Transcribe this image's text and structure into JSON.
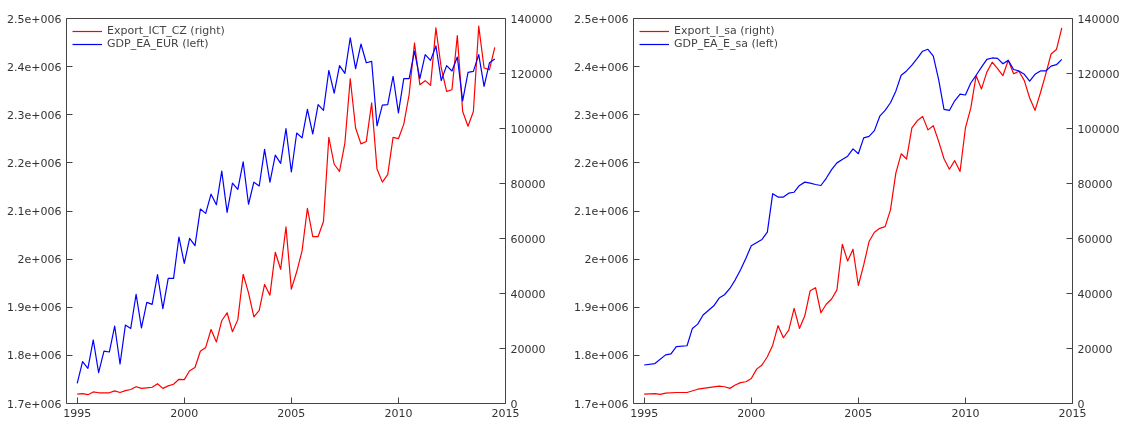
{
  "chart_data": [
    {
      "type": "line",
      "xlim": [
        1994.5,
        2015
      ],
      "xticks": [
        1995,
        2000,
        2005,
        2010,
        2015
      ],
      "ylim": [
        1700000,
        2500000
      ],
      "yticks": [
        {
          "value": 1700000,
          "label": "1.7e+006"
        },
        {
          "value": 1800000,
          "label": "1.8e+006"
        },
        {
          "value": 1900000,
          "label": "1.9e+006"
        },
        {
          "value": 2000000,
          "label": "2e+006"
        },
        {
          "value": 2100000,
          "label": "2.1e+006"
        },
        {
          "value": 2200000,
          "label": "2.2e+006"
        },
        {
          "value": 2300000,
          "label": "2.3e+006"
        },
        {
          "value": 2400000,
          "label": "2.4e+006"
        },
        {
          "value": 2500000,
          "label": "2.5e+006"
        }
      ],
      "y2lim": [
        0,
        140000
      ],
      "y2ticks": [
        0,
        20000,
        40000,
        60000,
        80000,
        100000,
        120000,
        140000
      ],
      "grid": false,
      "legend": "top left",
      "x": [
        1995,
        1995.25,
        1995.5,
        1995.75,
        1996,
        1996.25,
        1996.5,
        1996.75,
        1997,
        1997.25,
        1997.5,
        1997.75,
        1998,
        1998.25,
        1998.5,
        1998.75,
        1999,
        1999.25,
        1999.5,
        1999.75,
        2000,
        2000.25,
        2000.5,
        2000.75,
        2001,
        2001.25,
        2001.5,
        2001.75,
        2002,
        2002.25,
        2002.5,
        2002.75,
        2003,
        2003.25,
        2003.5,
        2003.75,
        2004,
        2004.25,
        2004.5,
        2004.75,
        2005,
        2005.25,
        2005.5,
        2005.75,
        2006,
        2006.25,
        2006.5,
        2006.75,
        2007,
        2007.25,
        2007.5,
        2007.75,
        2008,
        2008.25,
        2008.5,
        2008.75,
        2009,
        2009.25,
        2009.5,
        2009.75,
        2010,
        2010.25,
        2010.5,
        2010.75,
        2011,
        2011.25,
        2011.5,
        2011.75,
        2012,
        2012.25,
        2012.5,
        2012.75,
        2013,
        2013.25,
        2013.5,
        2013.75,
        2014,
        2014.25,
        2014.5
      ],
      "series": [
        {
          "name": "Export_ICT_CZ (right)",
          "color": "#ff0000",
          "axis": "y2",
          "values": [
            3400,
            3600,
            3200,
            4200,
            3900,
            3900,
            3900,
            4600,
            4000,
            4700,
            5100,
            6100,
            5500,
            5700,
            5900,
            7200,
            5500,
            6400,
            7000,
            8800,
            8700,
            11900,
            13100,
            19000,
            20400,
            26900,
            22400,
            30100,
            33000,
            26100,
            30500,
            47000,
            40200,
            31500,
            33900,
            43300,
            39400,
            55000,
            48800,
            64200,
            41600,
            47900,
            55500,
            71000,
            60700,
            60700,
            66200,
            96800,
            87000,
            84400,
            94700,
            118100,
            100200,
            94400,
            95300,
            109300,
            85300,
            80500,
            83200,
            96800,
            96300,
            101600,
            112300,
            131100,
            115900,
            117400,
            115700,
            136600,
            122000,
            113500,
            114100,
            133800,
            106200,
            100800,
            106200,
            137200,
            122000,
            121400,
            129500
          ]
        },
        {
          "name": "GDP_EA_EUR (left)",
          "color": "#0000ff",
          "values": [
            1742000,
            1787000,
            1773000,
            1832000,
            1764000,
            1809000,
            1807000,
            1861000,
            1782000,
            1863000,
            1856000,
            1927000,
            1857000,
            1910000,
            1906000,
            1968000,
            1897000,
            1960000,
            1960000,
            2046000,
            1991000,
            2043000,
            2028000,
            2104000,
            2095000,
            2135000,
            2113000,
            2183000,
            2097000,
            2158000,
            2145000,
            2202000,
            2114000,
            2160000,
            2152000,
            2228000,
            2160000,
            2216000,
            2199000,
            2271000,
            2181000,
            2262000,
            2252000,
            2311000,
            2260000,
            2321000,
            2309000,
            2392000,
            2345000,
            2402000,
            2386000,
            2460000,
            2396000,
            2447000,
            2408000,
            2411000,
            2277000,
            2320000,
            2321000,
            2380000,
            2304000,
            2375000,
            2375000,
            2432000,
            2375000,
            2425000,
            2413000,
            2443000,
            2371000,
            2402000,
            2391000,
            2420000,
            2329000,
            2388000,
            2390000,
            2425000,
            2359000,
            2408000,
            2416000
          ]
        }
      ]
    },
    {
      "type": "line",
      "xlim": [
        1994.5,
        2015
      ],
      "xticks": [
        1995,
        2000,
        2005,
        2010,
        2015
      ],
      "ylim": [
        1700000,
        2500000
      ],
      "yticks": [
        {
          "value": 1700000,
          "label": "1.7e+006"
        },
        {
          "value": 1800000,
          "label": "1.8e+006"
        },
        {
          "value": 1900000,
          "label": "1.9e+006"
        },
        {
          "value": 2000000,
          "label": "2e+006"
        },
        {
          "value": 2100000,
          "label": "2.1e+006"
        },
        {
          "value": 2200000,
          "label": "2.2e+006"
        },
        {
          "value": 2300000,
          "label": "2.3e+006"
        },
        {
          "value": 2400000,
          "label": "2.4e+006"
        },
        {
          "value": 2500000,
          "label": "2.5e+006"
        }
      ],
      "y2lim": [
        0,
        140000
      ],
      "y2ticks": [
        0,
        20000,
        40000,
        60000,
        80000,
        100000,
        120000,
        140000
      ],
      "grid": false,
      "legend": "top left",
      "series": [
        {
          "name": "Export_I_sa (right)",
          "color": "#ff0000",
          "axis": "y2",
          "x": [
            1995,
            1995.5,
            1995.75,
            1996,
            1996.5,
            1997,
            1997.5,
            1997.75,
            1998,
            1998.5,
            1998.75,
            1999,
            1999.25,
            1999.5,
            1999.75,
            2000,
            2000.25,
            2000.5,
            2000.75,
            2001,
            2001.25,
            2001.5,
            2001.75,
            2002,
            2002.25,
            2002.5,
            2002.75,
            2003,
            2003.25,
            2003.5,
            2003.75,
            2004,
            2004.25,
            2004.5,
            2004.75,
            2005,
            2005.25,
            2005.5,
            2005.75,
            2006,
            2006.25,
            2006.5,
            2006.75,
            2007,
            2007.25,
            2007.5,
            2007.75,
            2008,
            2008.25,
            2008.5,
            2008.75,
            2009,
            2009.25,
            2009.5,
            2009.75,
            2010,
            2010.25,
            2010.5,
            2010.75,
            2011,
            2011.25,
            2011.5,
            2011.75,
            2012,
            2012.25,
            2012.5,
            2012.75,
            2013,
            2013.25,
            2013.5,
            2013.75,
            2014,
            2014.25,
            2014.5
          ],
          "values": [
            3400,
            3600,
            3300,
            3800,
            4000,
            4000,
            5200,
            5500,
            5800,
            6300,
            6100,
            5500,
            6700,
            7600,
            7900,
            9100,
            12500,
            14000,
            17000,
            21200,
            28300,
            23900,
            26700,
            34600,
            27300,
            31900,
            41000,
            42100,
            33000,
            36100,
            38000,
            41300,
            57900,
            51800,
            56100,
            42900,
            50400,
            58900,
            62300,
            63700,
            64300,
            70400,
            83800,
            90800,
            88900,
            100200,
            102800,
            104400,
            99500,
            101000,
            95300,
            89000,
            85200,
            88300,
            84400,
            100200,
            107400,
            119200,
            114400,
            120500,
            124100,
            121800,
            119200,
            124800,
            119900,
            120800,
            117400,
            111100,
            106600,
            112900,
            119800,
            127100,
            128700,
            136600
          ]
        },
        {
          "name": "GDP_EA_E_sa (left)",
          "color": "#0000ff",
          "x": [
            1995,
            1995.5,
            1996,
            1996.25,
            1996.5,
            1997,
            1997.25,
            1997.5,
            1997.75,
            1998.25,
            1998.5,
            1998.75,
            1999,
            1999.25,
            1999.5,
            1999.75,
            2000,
            2000.5,
            2000.75,
            2001,
            2001.25,
            2001.5,
            2001.75,
            2002,
            2002.25,
            2002.5,
            2002.75,
            2003,
            2003.25,
            2003.5,
            2003.75,
            2004,
            2004.25,
            2004.5,
            2004.75,
            2005,
            2005.25,
            2005.5,
            2005.75,
            2006,
            2006.25,
            2006.5,
            2006.75,
            2007,
            2007.25,
            2007.5,
            2007.75,
            2008,
            2008.25,
            2008.5,
            2008.75,
            2009,
            2009.25,
            2009.5,
            2009.75,
            2010,
            2010.25,
            2010.5,
            2010.75,
            2011,
            2011.25,
            2011.5,
            2011.75,
            2012,
            2012.25,
            2012.5,
            2012.75,
            2013,
            2013.25,
            2013.5,
            2013.75,
            2014,
            2014.25,
            2014.5
          ],
          "values": [
            1780000,
            1783000,
            1801000,
            1803000,
            1818000,
            1820000,
            1856000,
            1865000,
            1884000,
            1903000,
            1919000,
            1926000,
            1939000,
            1957000,
            1978000,
            2002000,
            2028000,
            2041000,
            2056000,
            2136000,
            2129000,
            2129000,
            2137000,
            2139000,
            2153000,
            2160000,
            2158000,
            2155000,
            2153000,
            2168000,
            2186000,
            2200000,
            2207000,
            2214000,
            2229000,
            2219000,
            2252000,
            2255000,
            2267000,
            2297000,
            2309000,
            2325000,
            2349000,
            2382000,
            2391000,
            2403000,
            2417000,
            2432000,
            2436000,
            2422000,
            2373000,
            2311000,
            2309000,
            2329000,
            2343000,
            2341000,
            2366000,
            2382000,
            2399000,
            2415000,
            2418000,
            2417000,
            2406000,
            2413000,
            2394000,
            2391000,
            2384000,
            2370000,
            2384000,
            2391000,
            2391000,
            2401000,
            2404000,
            2415000
          ]
        }
      ]
    }
  ]
}
